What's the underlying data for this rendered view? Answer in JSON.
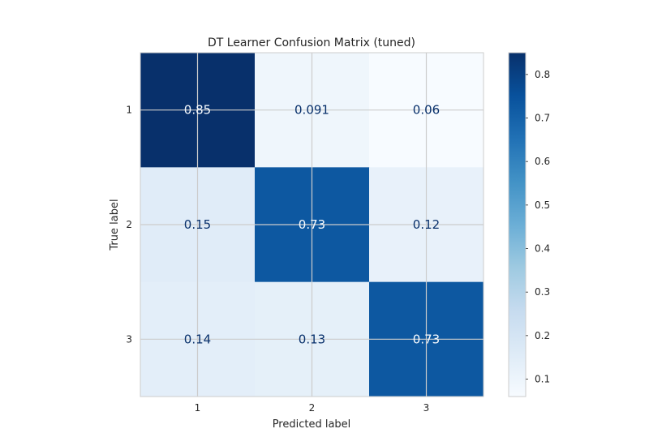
{
  "chart_data": {
    "type": "heatmap",
    "title": "DT Learner Confusion Matrix (tuned)",
    "xlabel": "Predicted label",
    "ylabel": "True label",
    "x_categories": [
      "1",
      "2",
      "3"
    ],
    "y_categories": [
      "1",
      "2",
      "3"
    ],
    "values": [
      [
        0.85,
        0.091,
        0.06
      ],
      [
        0.15,
        0.73,
        0.12
      ],
      [
        0.14,
        0.13,
        0.73
      ]
    ],
    "cell_labels": [
      [
        "0.85",
        "0.091",
        "0.06"
      ],
      [
        "0.15",
        "0.73",
        "0.12"
      ],
      [
        "0.14",
        "0.13",
        "0.73"
      ]
    ],
    "colormap": "Blues",
    "colorbar": {
      "range": [
        0.06,
        0.85
      ],
      "ticks": [
        0.1,
        0.2,
        0.3,
        0.4,
        0.5,
        0.6,
        0.7,
        0.8
      ],
      "tick_labels": [
        "0.1",
        "0.2",
        "0.3",
        "0.4",
        "0.5",
        "0.6",
        "0.7",
        "0.8"
      ]
    },
    "grid": true,
    "text_color_dark": "#08306b",
    "text_color_light": "#f7fbff"
  }
}
